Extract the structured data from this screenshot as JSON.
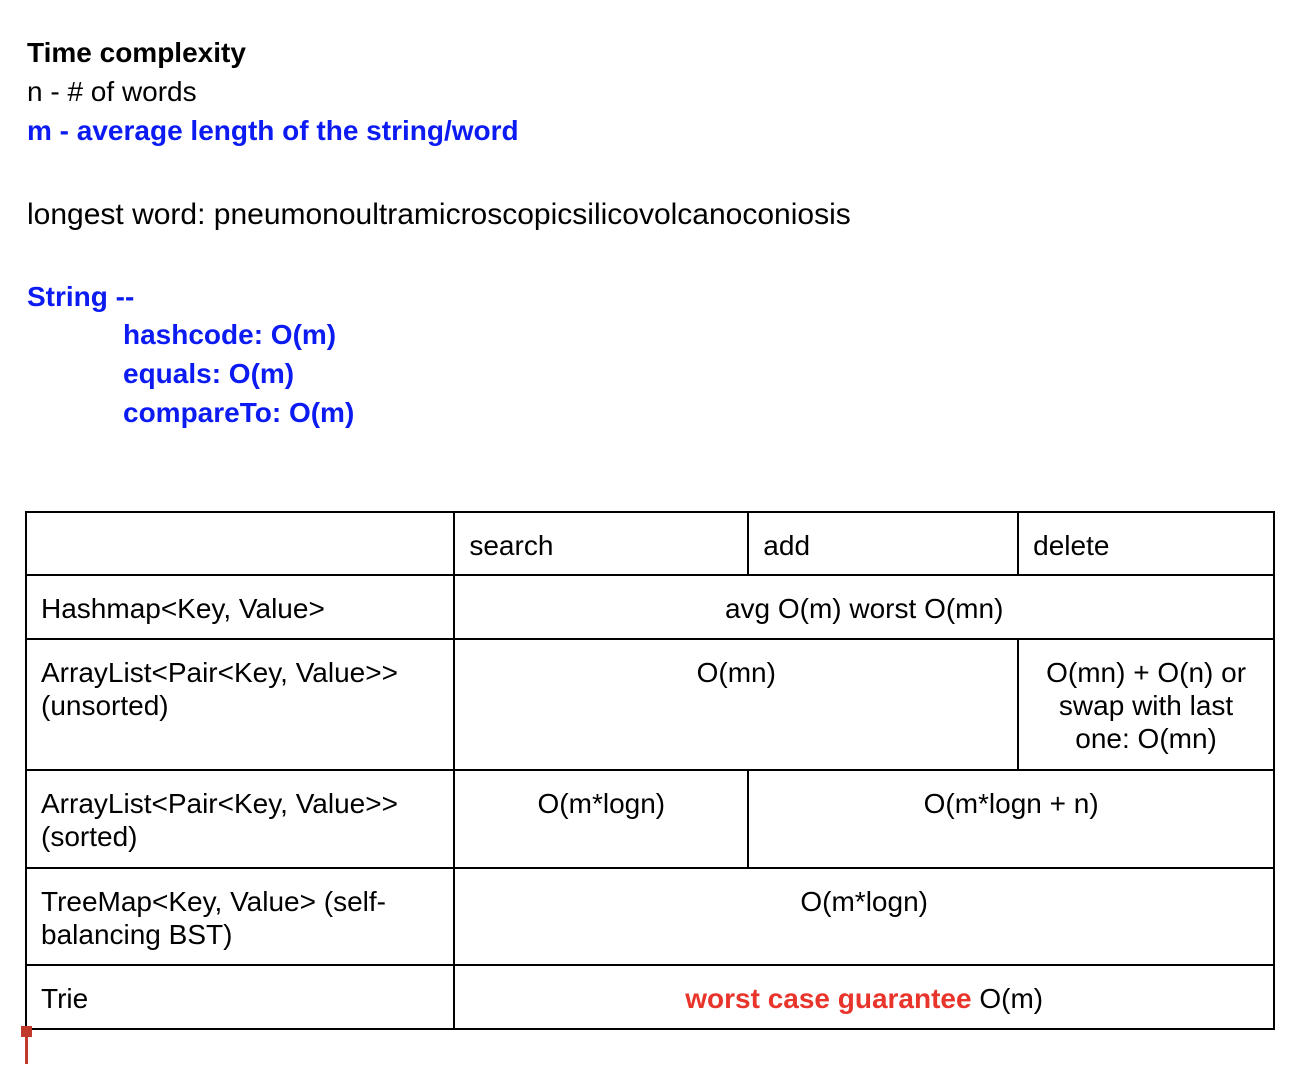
{
  "notes": {
    "title": "Time complexity",
    "n_def": "n - # of words",
    "m_def": "m - average length of the string/word",
    "longest_word": "longest word: pneumonoultramicroscopicsilicovolcanoconiosis",
    "string_heading": "String --",
    "string_methods": [
      "hashcode: O(m)",
      "equals: O(m)",
      "compareTo: O(m)"
    ]
  },
  "table": {
    "headers": [
      "",
      "search",
      "add",
      "delete"
    ],
    "rows": [
      {
        "label": "Hashmap<Key, Value>",
        "value": "avg O(m) worst O(mn)"
      },
      {
        "label": "ArrayList<Pair<Key, Value>> (unsorted)",
        "search_add": "O(mn)",
        "delete": "O(mn) + O(n) or swap with last one: O(mn)"
      },
      {
        "label": "ArrayList<Pair<Key, Value>> (sorted)",
        "search": "O(m*logn)",
        "add_delete": "O(m*logn + n)"
      },
      {
        "label": "TreeMap<Key, Value> (self-balancing BST)",
        "value": "O(m*logn)"
      },
      {
        "label": "Trie",
        "highlight": "worst case guarantee",
        "value": "O(m)"
      }
    ]
  },
  "colors": {
    "blue_text": "#0b1bf2",
    "red_text": "#e8342a",
    "cursor": "#c0392b"
  }
}
